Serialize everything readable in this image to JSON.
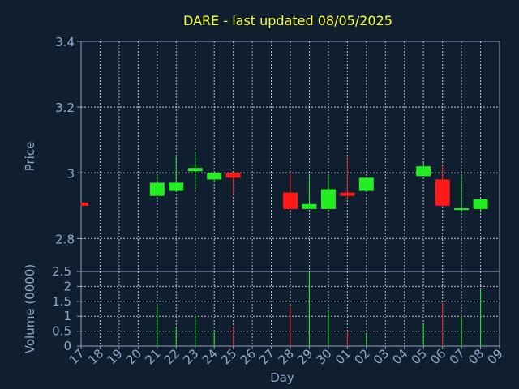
{
  "chart_data": [
    {
      "type": "candlestick",
      "title": "DARE - last updated 08/05/2025",
      "ylabel": "Price",
      "xlabel": "",
      "ylim": [
        2.7,
        3.4
      ],
      "yticks": [
        2.8,
        3,
        3.2,
        3.4
      ],
      "grid": true,
      "candles": [
        {
          "day": "17",
          "open": 2.91,
          "high": 2.91,
          "low": 2.9,
          "close": 2.9
        },
        {
          "day": "21",
          "open": 2.93,
          "high": 2.99,
          "low": 2.93,
          "close": 2.97
        },
        {
          "day": "22",
          "open": 2.945,
          "high": 3.05,
          "low": 2.945,
          "close": 2.97
        },
        {
          "day": "23",
          "open": 3.005,
          "high": 3.06,
          "low": 2.95,
          "close": 3.015
        },
        {
          "day": "24",
          "open": 2.98,
          "high": 3.0,
          "low": 2.97,
          "close": 3.0
        },
        {
          "day": "25",
          "open": 3.0,
          "high": 3.0,
          "low": 2.93,
          "close": 2.985
        },
        {
          "day": "28",
          "open": 2.94,
          "high": 3.0,
          "low": 2.89,
          "close": 2.89
        },
        {
          "day": "29",
          "open": 2.89,
          "high": 2.99,
          "low": 2.89,
          "close": 2.905
        },
        {
          "day": "30",
          "open": 2.89,
          "high": 2.99,
          "low": 2.89,
          "close": 2.95
        },
        {
          "day": "01",
          "open": 2.94,
          "high": 3.05,
          "low": 2.92,
          "close": 2.93
        },
        {
          "day": "02",
          "open": 2.945,
          "high": 2.985,
          "low": 2.945,
          "close": 2.985
        },
        {
          "day": "05",
          "open": 2.99,
          "high": 3.03,
          "low": 2.99,
          "close": 3.02
        },
        {
          "day": "06",
          "open": 2.98,
          "high": 3.02,
          "low": 2.895,
          "close": 2.9
        },
        {
          "day": "07",
          "open": 2.89,
          "high": 2.99,
          "low": 2.89,
          "close": 2.892
        },
        {
          "day": "08",
          "open": 2.89,
          "high": 2.92,
          "low": 2.885,
          "close": 2.92
        }
      ]
    },
    {
      "type": "bar",
      "ylabel": "Volume (0000)",
      "xlabel": "Day",
      "ylim": [
        0,
        2.5
      ],
      "yticks": [
        "0",
        "0.5",
        "1",
        "1.5",
        "2",
        "2.5"
      ],
      "grid": true,
      "categories": [
        "17",
        "18",
        "19",
        "20",
        "21",
        "22",
        "23",
        "24",
        "25",
        "26",
        "27",
        "28",
        "29",
        "30",
        "01",
        "02",
        "03",
        "04",
        "05",
        "06",
        "07",
        "08",
        "09"
      ],
      "values": [
        0,
        0,
        0,
        0,
        1.35,
        0.6,
        1.0,
        0.5,
        0.65,
        0,
        0,
        1.35,
        2.5,
        1.2,
        0.5,
        0.45,
        0,
        0,
        0.75,
        1.45,
        1.0,
        1.9,
        0
      ]
    }
  ]
}
